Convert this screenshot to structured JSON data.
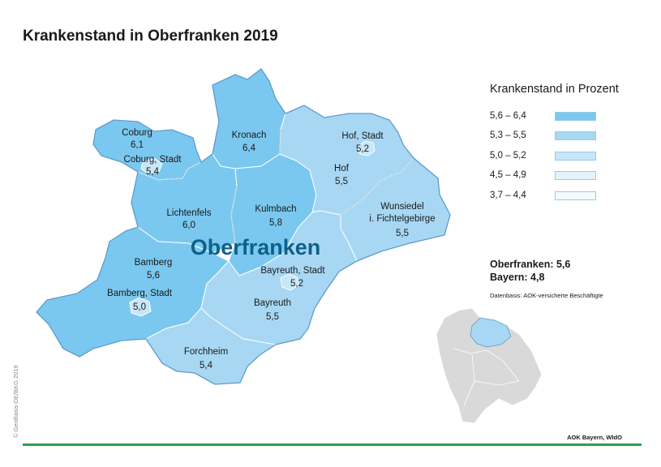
{
  "title": "Krankenstand in Oberfranken 2019",
  "map_label": "Oberfranken",
  "colors": {
    "class_1": "#7ac8ef",
    "class_2": "#a7d7f3",
    "class_3": "#c7e6f8",
    "class_4": "#e3f2fb",
    "class_5": "#f5fafd",
    "border": "#5b9bc9",
    "inner_border": "#8aa9be",
    "locator_bg": "#d9d9d9",
    "title_blue": "#0d6189",
    "footer_green": "#2e9e4f"
  },
  "regions": [
    {
      "name": "Coburg",
      "value": "6,1"
    },
    {
      "name": "Coburg, Stadt",
      "value": "5,4"
    },
    {
      "name": "Kronach",
      "value": "6,4"
    },
    {
      "name": "Hof, Stadt",
      "value": "5,2"
    },
    {
      "name": "Hof",
      "value": "5,5"
    },
    {
      "name": "Wunsiedel",
      "name2": "i. Fichtelgebirge",
      "value": "5,5"
    },
    {
      "name": "Lichtenfels",
      "value": "6,0"
    },
    {
      "name": "Kulmbach",
      "value": "5,8"
    },
    {
      "name": "Bamberg",
      "value": "5,6"
    },
    {
      "name": "Bamberg, Stadt",
      "value": "5,0"
    },
    {
      "name": "Bayreuth, Stadt",
      "value": "5,2"
    },
    {
      "name": "Bayreuth",
      "value": "5,5"
    },
    {
      "name": "Forchheim",
      "value": "5,4"
    }
  ],
  "legend": {
    "title": "Krankenstand in Prozent",
    "items": [
      {
        "label": "5,6 – 6,4",
        "color": "#7ac8ef"
      },
      {
        "label": "5,3 – 5,5",
        "color": "#a7d7f3"
      },
      {
        "label": "5,0 – 5,2",
        "color": "#c7e6f8"
      },
      {
        "label": "4,5 – 4,9",
        "color": "#e3f2fb"
      },
      {
        "label": "3,7 – 4,4",
        "color": "#f5fafd"
      }
    ]
  },
  "totals": {
    "oberfranken": "Oberfranken: 5,6",
    "bayern": "Bayern: 4,8"
  },
  "basis": "Datenbasis: AOK-versicherte Beschäftigte",
  "copyright": "© GeoBasis-DE/BKG 2019",
  "source": "AOK Bayern, WIdO"
}
